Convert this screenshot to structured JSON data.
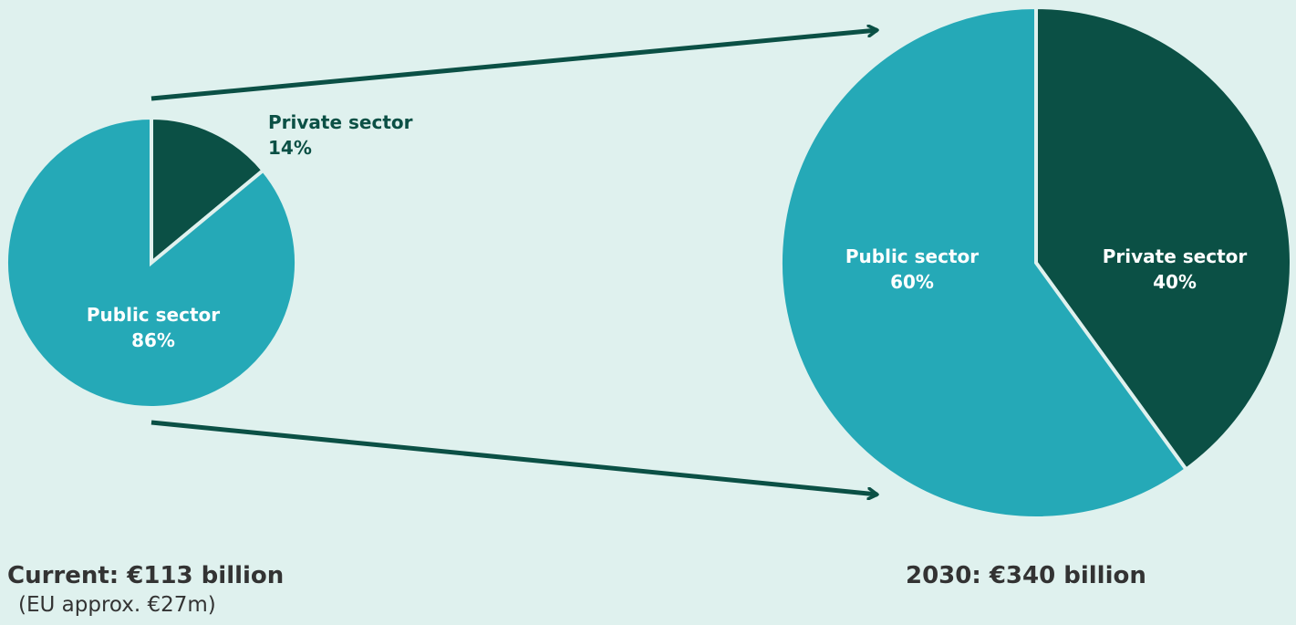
{
  "colors": {
    "background": "#dff1ee",
    "private": "#0b5045",
    "public": "#25a9b7",
    "separator": "#dff1ee",
    "arrow": "#0b5045",
    "label_on_dark": "#ffffff",
    "label_outside": "#0b5045"
  },
  "chart_data": [
    {
      "type": "pie",
      "categories": [
        "Private sector",
        "Public sector"
      ],
      "values": [
        14,
        86
      ],
      "value_suffix": "%",
      "caption": "Current: €113 billion",
      "subcaption": "(EU approx. €27m)",
      "legend": "none"
    },
    {
      "type": "pie",
      "categories": [
        "Private sector",
        "Public sector"
      ],
      "values": [
        40,
        60
      ],
      "value_suffix": "%",
      "caption": "2030: €340 billion",
      "legend": "none"
    }
  ]
}
